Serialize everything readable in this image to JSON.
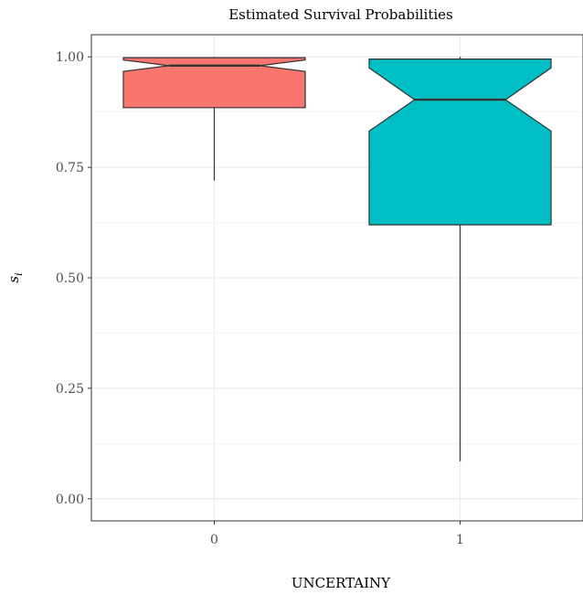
{
  "chart_data": {
    "type": "boxplot",
    "title": "Estimated Survival Probabilities",
    "xlabel": "UNCERTAINY",
    "ylabel_main": "s",
    "ylabel_sub": "i",
    "ylim": [
      -0.05,
      1.05
    ],
    "yticks": [
      0.0,
      0.25,
      0.5,
      0.75,
      1.0
    ],
    "ytick_labels": [
      "0.00",
      "0.25",
      "0.50",
      "0.75",
      "1.00"
    ],
    "notched": true,
    "grid": true,
    "categories": [
      "0",
      "1"
    ],
    "boxes": [
      {
        "category": "0",
        "min": 0.72,
        "q1": 0.885,
        "median": 0.98,
        "q3": 0.998,
        "max": 1.0,
        "notch_low": 0.967,
        "notch_high": 0.993,
        "color": "#F8766D"
      },
      {
        "category": "1",
        "min": 0.085,
        "q1": 0.62,
        "median": 0.903,
        "q3": 0.995,
        "max": 1.0,
        "notch_low": 0.832,
        "notch_high": 0.975,
        "color": "#00BFC4"
      }
    ]
  }
}
